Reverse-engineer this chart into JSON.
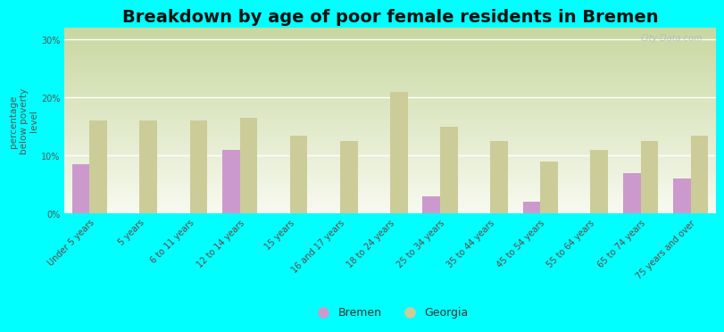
{
  "title": "Breakdown by age of poor female residents in Bremen",
  "ylabel": "percentage\nbelow poverty\nlevel",
  "categories": [
    "Under 5 years",
    "5 years",
    "6 to 11 years",
    "12 to 14 years",
    "15 years",
    "16 and 17 years",
    "18 to 24 years",
    "25 to 34 years",
    "35 to 44 years",
    "45 to 54 years",
    "55 to 64 years",
    "65 to 74 years",
    "75 years and over"
  ],
  "bremen_values": [
    8.5,
    0,
    0,
    11.0,
    0,
    0,
    0,
    3.0,
    0,
    2.0,
    0,
    7.0,
    6.0
  ],
  "georgia_values": [
    16.0,
    16.0,
    16.0,
    16.5,
    13.5,
    12.5,
    21.0,
    15.0,
    12.5,
    9.0,
    11.0,
    12.5,
    13.5
  ],
  "bremen_color": "#cc99cc",
  "georgia_color": "#cccc99",
  "background_color": "#00ffff",
  "yticks": [
    0,
    10,
    20,
    30
  ],
  "ytick_labels": [
    "0%",
    "10%",
    "20%",
    "30%"
  ],
  "ylim": [
    0,
    32
  ],
  "bar_width": 0.35,
  "title_fontsize": 14,
  "axis_label_fontsize": 7.5,
  "tick_label_fontsize": 7,
  "legend_fontsize": 9,
  "watermark": "City-Data.com"
}
